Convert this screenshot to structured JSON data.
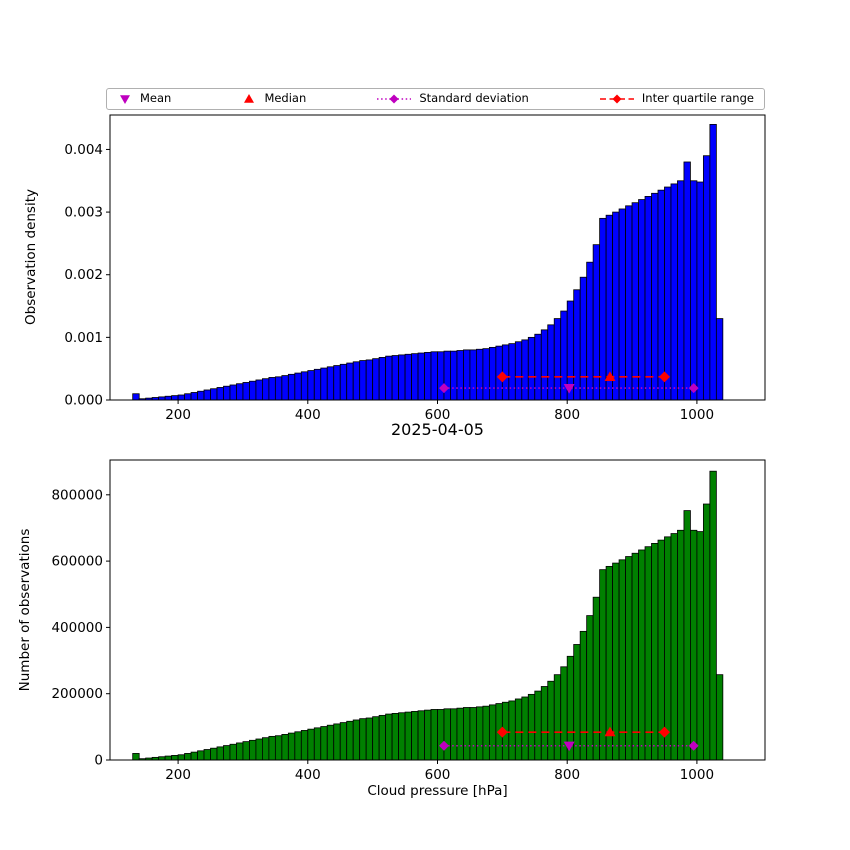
{
  "figure": {
    "title": "2025-04-05",
    "xlabel": "Cloud pressure [hPa]",
    "background": "#ffffff"
  },
  "legend": {
    "items": [
      {
        "label": "Mean",
        "marker": "triangle-down",
        "line": "none",
        "color": "#bf00bf"
      },
      {
        "label": "Median",
        "marker": "triangle-up",
        "line": "none",
        "color": "#ff0000"
      },
      {
        "label": "Standard deviation",
        "marker": "diamond",
        "line": "dotted",
        "color": "#bf00bf"
      },
      {
        "label": "Inter quartile range",
        "marker": "diamond",
        "line": "dashed",
        "color": "#ff0000"
      }
    ]
  },
  "chart_data": [
    {
      "type": "bar",
      "title": "",
      "ylabel": "Observation density",
      "bar_color": "#0000ff",
      "edge_color": "#000000",
      "bin_start": 130,
      "bin_width": 10,
      "xlim": [
        95,
        1105
      ],
      "ylim": [
        0,
        0.00455
      ],
      "xticks": [
        200,
        400,
        600,
        800,
        1000
      ],
      "xtick_labels": [
        "200",
        "400",
        "600",
        "800",
        "1000"
      ],
      "yticks": [
        0,
        0.001,
        0.002,
        0.003,
        0.004
      ],
      "ytick_labels": [
        "0.000",
        "0.001",
        "0.002",
        "0.003",
        "0.004"
      ],
      "values": [
        0.0001,
        2e-05,
        3e-05,
        4e-05,
        5e-05,
        6e-05,
        7e-05,
        8e-05,
        0.0001,
        0.00012,
        0.00014,
        0.00016,
        0.00018,
        0.0002,
        0.00022,
        0.00024,
        0.00026,
        0.00028,
        0.0003,
        0.00032,
        0.00034,
        0.00036,
        0.00037,
        0.00039,
        0.00041,
        0.00043,
        0.00045,
        0.00047,
        0.00049,
        0.00051,
        0.00053,
        0.00055,
        0.00057,
        0.00059,
        0.00061,
        0.00063,
        0.00064,
        0.00066,
        0.00068,
        0.0007,
        0.00071,
        0.00072,
        0.00073,
        0.00074,
        0.00075,
        0.00076,
        0.00077,
        0.00077,
        0.00078,
        0.00078,
        0.00079,
        0.0008,
        0.0008,
        0.00081,
        0.00082,
        0.00084,
        0.00086,
        0.00088,
        0.0009,
        0.00093,
        0.00096,
        0.001,
        0.00105,
        0.00112,
        0.0012,
        0.0013,
        0.00142,
        0.00158,
        0.00176,
        0.00196,
        0.0022,
        0.00248,
        0.0029,
        0.00295,
        0.003,
        0.00305,
        0.0031,
        0.00315,
        0.0032,
        0.00325,
        0.0033,
        0.00335,
        0.0034,
        0.00345,
        0.0035,
        0.0038,
        0.0035,
        0.00348,
        0.0039,
        0.0044,
        0.0013
      ],
      "markers": {
        "mean": {
          "x": 803,
          "y": 0.00019
        },
        "median": {
          "x": 866,
          "y": 0.00037
        },
        "std": {
          "x1": 610,
          "x2": 995,
          "y": 0.00019
        },
        "iqr": {
          "x1": 700,
          "x2": 950,
          "y": 0.00037
        }
      }
    },
    {
      "type": "bar",
      "title": "2025-04-05",
      "xlabel": "Cloud pressure [hPa]",
      "ylabel": "Number of observations",
      "bar_color": "#008000",
      "edge_color": "#000000",
      "bin_start": 130,
      "bin_width": 10,
      "xlim": [
        95,
        1105
      ],
      "ylim": [
        0,
        905000
      ],
      "xticks": [
        200,
        400,
        600,
        800,
        1000
      ],
      "xtick_labels": [
        "200",
        "400",
        "600",
        "800",
        "1000"
      ],
      "yticks": [
        0,
        200000,
        400000,
        600000,
        800000
      ],
      "ytick_labels": [
        "0",
        "200000",
        "400000",
        "600000",
        "800000"
      ],
      "values": [
        19800,
        3960,
        5940,
        7920,
        9900,
        11880,
        13860,
        15840,
        19800,
        23760,
        27720,
        31680,
        35640,
        39600,
        43560,
        47520,
        51480,
        55440,
        59400,
        63360,
        67320,
        71280,
        73260,
        77220,
        81180,
        85140,
        89100,
        93060,
        97020,
        100980,
        104940,
        108900,
        112860,
        116820,
        120780,
        124740,
        126720,
        130680,
        134640,
        138600,
        140580,
        142560,
        144540,
        146520,
        148500,
        150480,
        152460,
        152460,
        154440,
        154440,
        156420,
        158400,
        158400,
        160380,
        162360,
        166320,
        170280,
        174240,
        178200,
        184140,
        190080,
        198000,
        207900,
        221760,
        237600,
        257400,
        281160,
        312840,
        348480,
        388080,
        435600,
        491040,
        574200,
        584100,
        594000,
        603900,
        613800,
        623700,
        633600,
        643500,
        653400,
        663300,
        673200,
        683100,
        693000,
        752400,
        693000,
        689040,
        772200,
        871200,
        257400
      ],
      "markers": {
        "mean": {
          "x": 803,
          "y": 43000
        },
        "median": {
          "x": 866,
          "y": 84000
        },
        "std": {
          "x1": 610,
          "x2": 995,
          "y": 43000
        },
        "iqr": {
          "x1": 700,
          "x2": 950,
          "y": 84000
        }
      }
    }
  ]
}
